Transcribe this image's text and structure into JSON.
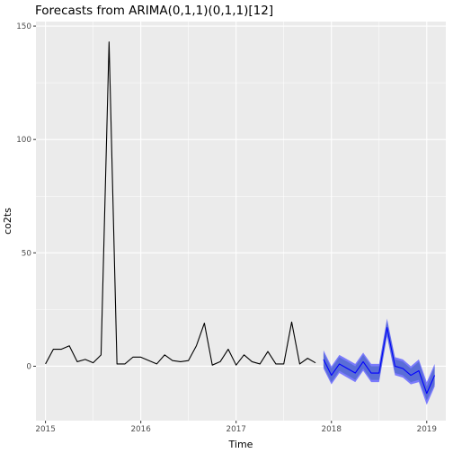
{
  "chart_data": {
    "type": "line",
    "title": "Forecasts from ARIMA(0,1,1)(0,1,1)[12]",
    "xlabel": "Time",
    "ylabel": "co2ts",
    "xlim": [
      2014.9,
      2019.2
    ],
    "ylim": [
      -24,
      152
    ],
    "x_ticks": [
      2015,
      2016,
      2017,
      2018,
      2019
    ],
    "x_tick_labels": [
      "2015",
      "2016",
      "2017",
      "2018",
      "2019"
    ],
    "y_ticks": [
      0,
      50,
      100,
      150
    ],
    "y_tick_labels": [
      "0",
      "50",
      "100",
      "150"
    ],
    "grid": true,
    "panel_background": "#EBEBEB",
    "grid_color": "#FFFFFF",
    "observed": {
      "color": "#000000",
      "x": [
        2015.0,
        2015.083,
        2015.167,
        2015.25,
        2015.333,
        2015.417,
        2015.5,
        2015.583,
        2015.667,
        2015.75,
        2015.833,
        2015.917,
        2016.0,
        2016.083,
        2016.167,
        2016.25,
        2016.333,
        2016.417,
        2016.5,
        2016.583,
        2016.667,
        2016.75,
        2016.833,
        2016.917,
        2017.0,
        2017.083,
        2017.167,
        2017.25,
        2017.333,
        2017.417,
        2017.5,
        2017.583,
        2017.667,
        2017.75,
        2017.833
      ],
      "y": [
        1,
        7.5,
        7.5,
        9,
        2,
        3,
        1.5,
        5,
        143,
        1,
        1,
        4,
        4,
        2.5,
        1,
        5,
        2.5,
        2,
        2.5,
        9,
        19,
        0.5,
        2,
        7.5,
        0.5,
        5,
        2,
        1,
        6.5,
        1,
        1,
        19.5,
        1,
        3.5,
        1.5
      ]
    },
    "forecast": {
      "color": "#0000FF",
      "band_color": "#596DD5",
      "band_color_outer": "#6666FF",
      "x": [
        2017.917,
        2018.0,
        2018.083,
        2018.167,
        2018.25,
        2018.333,
        2018.417,
        2018.5,
        2018.583,
        2018.667,
        2018.75,
        2018.833,
        2018.917,
        2019.0,
        2019.083
      ],
      "mean": [
        3,
        -4,
        1,
        -1,
        -3,
        2,
        -3,
        -3,
        17,
        0,
        -1,
        -4,
        -2,
        -12,
        -4
      ],
      "lower80": [
        0,
        -7,
        -2,
        -4,
        -6,
        -1,
        -6,
        -6,
        14,
        -3,
        -4,
        -7,
        -6,
        -15,
        -8
      ],
      "upper80": [
        6,
        -1,
        4,
        2,
        0,
        5,
        0,
        0,
        20,
        3,
        2,
        -1,
        2,
        -9,
        0
      ],
      "lower95": [
        -1,
        -8,
        -3,
        -5,
        -7,
        -2,
        -7,
        -7,
        13,
        -4,
        -5,
        -8,
        -7,
        -17,
        -9
      ],
      "upper95": [
        7,
        0,
        5,
        3,
        1,
        6,
        1,
        1,
        21,
        4,
        3,
        0,
        3,
        -7,
        1
      ]
    }
  }
}
